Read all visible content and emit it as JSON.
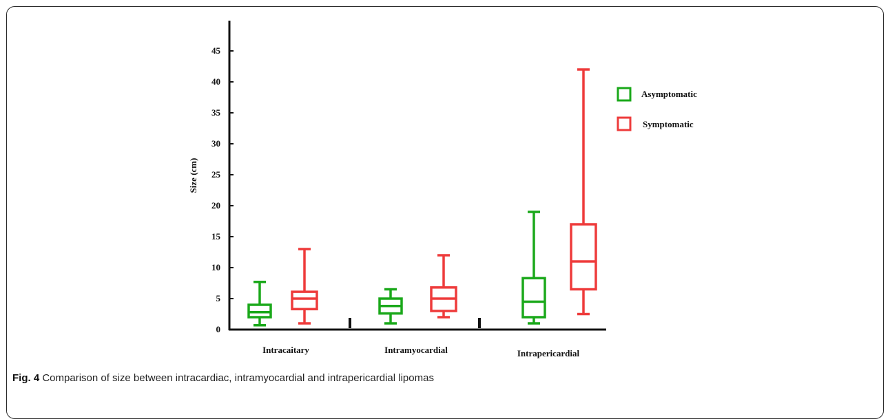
{
  "chart_data": {
    "type": "box",
    "ylabel": "Size (cm)",
    "xlabel": "",
    "ylim": [
      0,
      50
    ],
    "yticks": [
      0,
      5,
      10,
      15,
      20,
      25,
      30,
      35,
      40,
      45
    ],
    "categories": [
      "Intracaitary",
      "Intramyocardial",
      "Intrapericardial"
    ],
    "series": [
      {
        "name": "Asymptomatic",
        "color": "#1aa81a",
        "boxes": [
          {
            "min": 0.7,
            "q1": 2.0,
            "median": 2.8,
            "q3": 4.0,
            "max": 7.7
          },
          {
            "min": 1.0,
            "q1": 2.6,
            "median": 3.8,
            "q3": 5.0,
            "max": 6.5
          },
          {
            "min": 1.0,
            "q1": 2.0,
            "median": 4.5,
            "q3": 8.3,
            "max": 19.0
          }
        ]
      },
      {
        "name": "Symptomatic",
        "color": "#ee3b3b",
        "boxes": [
          {
            "min": 1.0,
            "q1": 3.3,
            "median": 5.0,
            "q3": 6.1,
            "max": 13.0
          },
          {
            "min": 2.0,
            "q1": 3.0,
            "median": 5.0,
            "q3": 6.8,
            "max": 12.0
          },
          {
            "min": 2.5,
            "q1": 6.5,
            "median": 11.0,
            "q3": 17.0,
            "max": 42.0
          }
        ]
      }
    ],
    "legend_position": "top-right"
  },
  "caption": {
    "label": "Fig. 4",
    "text": " Comparison of size between intracardiac, intramyocardial and intrapericardial lipomas"
  }
}
